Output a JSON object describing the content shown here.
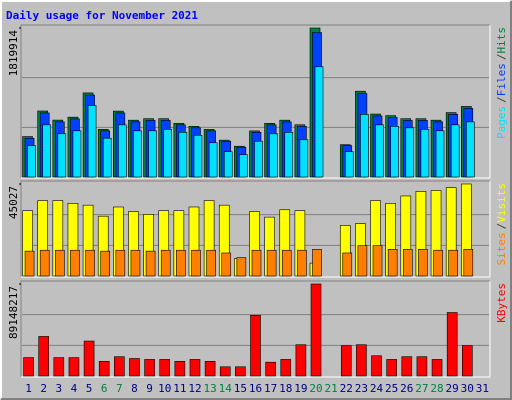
{
  "chart_data": [
    {
      "type": "bar",
      "title": "Daily usage for November 2021",
      "ylim": [
        0,
        1819914
      ],
      "yticks": [
        1819914
      ],
      "legend_separator": "/",
      "series": [
        {
          "name": "Hits",
          "color": "#008040",
          "values": [
            494000,
            806000,
            695000,
            731000,
            1027000,
            582000,
            805000,
            694000,
            712000,
            712000,
            656000,
            619000,
            581000,
            450000,
            376000,
            563000,
            656000,
            694000,
            638000,
            1819914,
            0,
            395000,
            1048000,
            769000,
            750000,
            712000,
            712000,
            694000,
            787000,
            862000,
            0
          ]
        },
        {
          "name": "Files",
          "color": "#0040ff",
          "values": [
            473178,
            782563,
            673368,
            709766,
            1000953,
            564173,
            782563,
            673368,
            691567,
            691567,
            636970,
            600572,
            564173,
            436779,
            363983,
            545974,
            636970,
            673368,
            618771,
            1765317,
            0,
            382182,
            1019152,
            746165,
            727966,
            691567,
            691567,
            673368,
            764364,
            837160,
            0
          ]
        },
        {
          "name": "Pages",
          "color": "#00e0ff",
          "values": [
            382182,
            636970,
            527775,
            564173,
            873559,
            473178,
            636970,
            564173,
            564173,
            582372,
            545974,
            509576,
            418580,
            309385,
            272987,
            436779,
            527775,
            545974,
            454979,
            1346736,
            0,
            309385,
            764364,
            636970,
            618771,
            600572,
            582372,
            564173,
            636970,
            673368,
            0
          ]
        }
      ]
    },
    {
      "type": "bar",
      "ylim": [
        0,
        45027
      ],
      "yticks": [
        45027
      ],
      "legend_separator": "/",
      "series": [
        {
          "name": "Visits",
          "color": "#ffff00",
          "values": [
            31969,
            36922,
            36922,
            35571,
            34671,
            29268,
            33770,
            31519,
            30168,
            31969,
            31969,
            33770,
            36922,
            34671,
            8555,
            31519,
            28817,
            32419,
            31969,
            6304,
            0,
            24765,
            25665,
            36922,
            35571,
            39173,
            41425,
            41875,
            43226,
            45027,
            0
          ]
        },
        {
          "name": "Sites",
          "color": "#ff8000",
          "values": [
            12157,
            12608,
            12608,
            12608,
            12608,
            12158,
            12608,
            12608,
            12158,
            12608,
            12608,
            12608,
            12608,
            11257,
            9005,
            12608,
            12608,
            12608,
            12608,
            13058,
            0,
            11257,
            14859,
            14859,
            13058,
            13058,
            13058,
            12608,
            12608,
            13058,
            0
          ]
        }
      ]
    },
    {
      "type": "bar",
      "ylim": [
        0,
        89148217
      ],
      "yticks": [
        89148217
      ],
      "categories": [
        "1",
        "2",
        "3",
        "4",
        "5",
        "6",
        "7",
        "8",
        "9",
        "10",
        "11",
        "12",
        "13",
        "14",
        "15",
        "16",
        "17",
        "18",
        "19",
        "20",
        "21",
        "22",
        "23",
        "24",
        "25",
        "26",
        "27",
        "28",
        "29",
        "30",
        "31"
      ],
      "label_colors": [
        "#000080",
        "#000080",
        "#000080",
        "#000080",
        "#000080",
        "#008040",
        "#008040",
        "#000080",
        "#000080",
        "#000080",
        "#000080",
        "#000080",
        "#008040",
        "#008040",
        "#000080",
        "#000080",
        "#000080",
        "#000080",
        "#000080",
        "#008040",
        "#008040",
        "#000080",
        "#000080",
        "#000080",
        "#000080",
        "#000080",
        "#008040",
        "#008040",
        "#000080",
        "#000080",
        "#000080"
      ],
      "series": [
        {
          "name": "KBytes",
          "color": "#ff0000",
          "values": [
            17829643,
            38333727,
            17829643,
            17829643,
            33876322,
            14263715,
            18721126,
            16938161,
            16046679,
            16046679,
            14263715,
            16046679,
            14263715,
            8914822,
            8914822,
            58837823,
            13372233,
            16046679,
            30310394,
            89148217,
            0,
            29418912,
            30310394,
            19612608,
            16046679,
            18721126,
            18721126,
            16046679,
            61512270,
            29418912,
            0
          ]
        }
      ]
    }
  ]
}
